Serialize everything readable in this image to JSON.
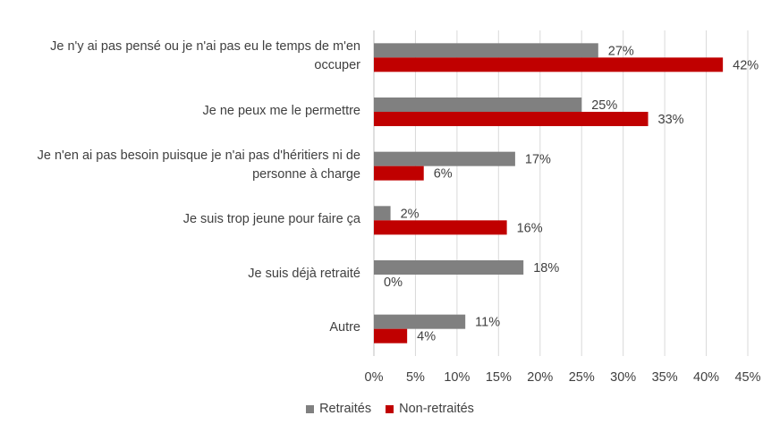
{
  "chart_data": {
    "type": "bar",
    "orientation": "horizontal",
    "categories": [
      "Je n'y ai pas pensé ou je n'ai pas eu le temps de m'en occuper",
      "Je ne peux me le permettre",
      "Je n'en ai pas besoin puisque je n'ai pas d'héritiers ni de personne à charge",
      "Je suis trop jeune pour faire ça",
      "Je suis déjà retraité",
      "Autre"
    ],
    "category_lines": [
      [
        "Je n'y ai pas pensé ou je n'ai pas eu le temps de m'en",
        "occuper"
      ],
      [
        "Je ne peux me le permettre"
      ],
      [
        "Je n'en ai pas besoin puisque je n'ai pas d'héritiers ni de",
        "personne à charge"
      ],
      [
        "Je suis trop jeune pour faire ça"
      ],
      [
        "Je suis déjà retraité"
      ],
      [
        "Autre"
      ]
    ],
    "series": [
      {
        "name": "Retraités",
        "color": "#808080",
        "values": [
          27,
          25,
          17,
          2,
          18,
          11
        ]
      },
      {
        "name": "Non-retraités",
        "color": "#C00000",
        "values": [
          42,
          33,
          6,
          16,
          0,
          4
        ]
      }
    ],
    "value_labels": [
      [
        "27%",
        "25%",
        "17%",
        "2%",
        "18%",
        "11%"
      ],
      [
        "42%",
        "33%",
        "6%",
        "16%",
        "0%",
        "4%"
      ]
    ],
    "xlim": [
      0,
      45
    ],
    "xticks": [
      0,
      5,
      10,
      15,
      20,
      25,
      30,
      35,
      40,
      45
    ],
    "xtick_labels": [
      "0%",
      "5%",
      "10%",
      "15%",
      "20%",
      "25%",
      "30%",
      "35%",
      "40%",
      "45%"
    ],
    "grid": "vertical",
    "legend_position": "bottom",
    "title": "",
    "xlabel": "",
    "ylabel": ""
  },
  "legend": {
    "retraites": "Retraités",
    "non_retraites": "Non-retraités"
  }
}
